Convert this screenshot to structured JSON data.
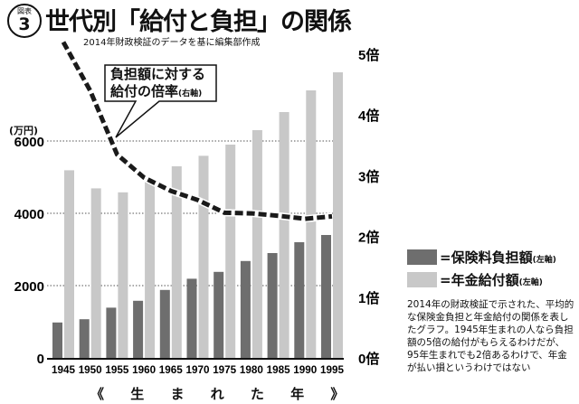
{
  "badge": {
    "label": "図表",
    "number": "3"
  },
  "title": "世代別「給付と負担」の関係",
  "subtitle": "2014年財政検証のデータを基に編集部作成",
  "callout": {
    "line1": "負担額に対する",
    "line2": "給付の倍率",
    "axis_note": "(右軸)"
  },
  "description": "2014年の財政検証で示された、平均的な保険金負担と年金給付の関係を表したグラフ。1945年生まれの人なら負担額の5倍の給付がもらえるわけだが、95年生まれでも2倍あるわけで、年金が払い損というわけではない",
  "colors": {
    "premium": "#6e6e6e",
    "benefit": "#c8c8c8",
    "line": "#1a1a1a"
  },
  "chart_data": {
    "type": "bar",
    "title": "世代別「給付と負担」の関係",
    "xlabel": "《 生 ま れ た 年 》",
    "ylabel": "(万円)",
    "y2label": "",
    "categories": [
      "1945",
      "1950",
      "1955",
      "1960",
      "1965",
      "1970",
      "1975",
      "1980",
      "1985",
      "1990",
      "1995"
    ],
    "ylim": [
      0,
      8000
    ],
    "yticks": [
      0,
      2000,
      4000,
      6000
    ],
    "ytick_labels": [
      "0",
      "2000",
      "4000",
      "6000"
    ],
    "y2lim": [
      0,
      5
    ],
    "y2ticks": [
      0,
      1,
      2,
      3,
      4,
      5
    ],
    "y2tick_labels": [
      "0倍",
      "1倍",
      "2倍",
      "3倍",
      "4倍",
      "5倍"
    ],
    "grid": "dotted horizontal at 2000, 4000, 6000",
    "legend_placement": "right",
    "series": [
      {
        "name": "=保険料負担額",
        "axis_note": "(左軸)",
        "type": "bar",
        "values": [
          980,
          1070,
          1390,
          1580,
          1880,
          2190,
          2380,
          2680,
          2900,
          3200,
          3400
        ]
      },
      {
        "name": "=年金給付額",
        "axis_note": "(左軸)",
        "type": "bar",
        "values": [
          5190,
          4690,
          4580,
          4920,
          5300,
          5590,
          5900,
          6300,
          6800,
          7400,
          7900
        ]
      },
      {
        "name": "負担額に対する給付の倍率",
        "axis_note": "(右軸)",
        "type": "line",
        "axis": "right",
        "values": [
          5.2,
          4.4,
          3.35,
          2.97,
          2.75,
          2.6,
          2.39,
          2.38,
          2.34,
          2.29,
          2.33
        ]
      }
    ]
  }
}
